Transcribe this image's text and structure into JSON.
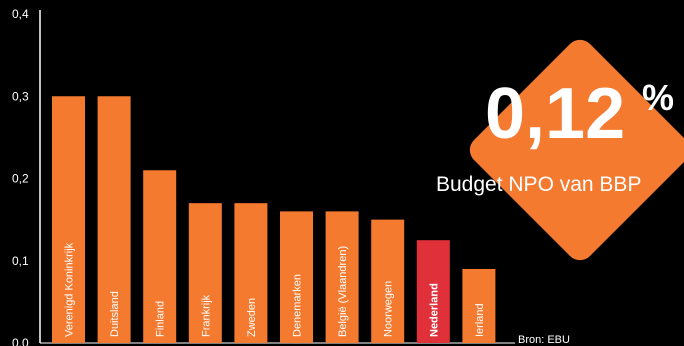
{
  "chart_data": {
    "type": "bar",
    "categories": [
      "Verenigd Koninkrijk",
      "Duitsland",
      "Finland",
      "Frankrijk",
      "Zweden",
      "Denemarken",
      "België (Vlaandren)",
      "Noorwegen",
      "Nederland",
      "Ierland"
    ],
    "values": [
      0.3,
      0.3,
      0.21,
      0.17,
      0.17,
      0.16,
      0.16,
      0.15,
      0.125,
      0.09
    ],
    "highlight": "Nederland",
    "ylim": [
      0,
      0.4
    ],
    "yticks": [
      0,
      0.1,
      0.2,
      0.3,
      0.4
    ],
    "ytick_labels": [
      "0,0",
      "0,1",
      "0,2",
      "0,3",
      "0,4"
    ],
    "grid": false,
    "legend": "none",
    "source": "Bron: EBU"
  },
  "callout": {
    "value": "0,12",
    "unit": "%",
    "label": "Budget NPO van BBP"
  },
  "colors": {
    "background": "#000000",
    "bar": "#F47A30",
    "highlight_bar": "#E0313B",
    "callout_fill": "#F47A30",
    "text": "#FFFFFF",
    "axis": "#FFFFFF"
  }
}
